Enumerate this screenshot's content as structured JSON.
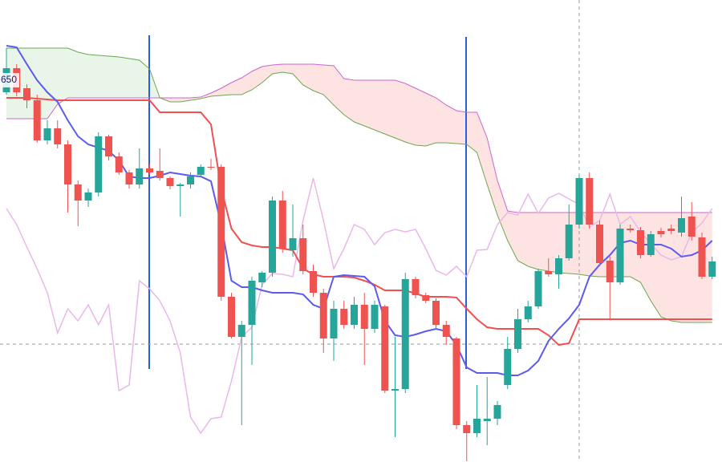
{
  "chart_data": {
    "type": "candlestick",
    "annotations": [
      "650"
    ],
    "ylim": [
      0,
      576
    ],
    "up_color": "#26a69a",
    "down_color": "#ef5350",
    "categories": [
      null,
      null,
      null,
      null,
      null,
      null,
      null,
      null,
      null,
      null,
      null,
      null,
      null,
      null,
      null,
      null,
      null,
      null,
      null,
      null,
      null,
      null,
      null,
      null,
      null,
      null,
      null,
      null,
      null,
      null,
      null,
      null,
      null,
      null,
      null,
      null,
      null,
      null,
      null,
      null,
      null,
      null,
      null,
      null,
      null,
      null,
      null,
      null,
      null,
      null,
      null,
      null,
      null,
      null,
      null,
      null,
      null,
      null,
      null,
      null,
      null,
      null,
      null,
      null,
      null,
      null,
      null,
      null,
      null,
      null
    ],
    "open": [
      461,
      491,
      466,
      451,
      401,
      416,
      396,
      346,
      326,
      336,
      406,
      381,
      361,
      346,
      366,
      363,
      354,
      344,
      346,
      358,
      368,
      368,
      206,
      156,
      171,
      224,
      236,
      326,
      264,
      279,
      238,
      211,
      154,
      191,
      171,
      196,
      166,
      194,
      89,
      91,
      228,
      208,
      201,
      171,
      154,
      46,
      36,
      51,
      54,
      96,
      141,
      178,
      194,
      238,
      234,
      254,
      296,
      354,
      296,
      251,
      224,
      291,
      289,
      258,
      288,
      291,
      286,
      306,
      280,
      231
    ],
    "high": [
      516,
      496,
      471,
      458,
      426,
      426,
      401,
      351,
      341,
      411,
      408,
      386,
      364,
      391,
      371,
      391,
      356,
      348,
      361,
      371,
      378,
      371,
      211,
      176,
      231,
      238,
      331,
      338,
      321,
      296,
      246,
      216,
      201,
      201,
      206,
      211,
      201,
      196,
      156,
      236,
      231,
      211,
      204,
      176,
      156,
      51,
      96,
      106,
      76,
      156,
      191,
      201,
      241,
      254,
      258,
      321,
      358,
      361,
      301,
      256,
      296,
      296,
      293,
      288,
      292,
      296,
      331,
      324,
      286,
      256
    ],
    "low": [
      458,
      456,
      441,
      398,
      396,
      391,
      311,
      294,
      318,
      331,
      376,
      358,
      341,
      341,
      358,
      351,
      340,
      306,
      341,
      356,
      364,
      201,
      154,
      46,
      121,
      218,
      231,
      261,
      256,
      234,
      206,
      136,
      126,
      166,
      166,
      121,
      161,
      86,
      31,
      86,
      204,
      198,
      166,
      146,
      41,
      1,
      31,
      21,
      46,
      91,
      136,
      174,
      191,
      231,
      216,
      251,
      291,
      291,
      244,
      178,
      221,
      286,
      254,
      256,
      280,
      284,
      281,
      276,
      228,
      228
    ],
    "close": [
      491,
      461,
      451,
      401,
      416,
      396,
      346,
      326,
      336,
      406,
      381,
      361,
      346,
      366,
      361,
      354,
      344,
      346,
      356,
      368,
      367,
      206,
      156,
      171,
      226,
      236,
      326,
      266,
      279,
      238,
      211,
      154,
      191,
      171,
      196,
      166,
      196,
      89,
      91,
      228,
      208,
      201,
      171,
      156,
      46,
      36,
      54,
      54,
      71,
      141,
      178,
      194,
      238,
      234,
      254,
      296,
      354,
      296,
      248,
      224,
      291,
      289,
      258,
      284,
      284,
      288,
      304,
      281,
      231,
      250
    ],
    "series": [
      {
        "color": "#cc66cc",
        "width": 1,
        "values": [
          428,
          428,
          428,
          428,
          428,
          446,
          454,
          454,
          454,
          454,
          454,
          454,
          454,
          454,
          454,
          454,
          454,
          454,
          454,
          455,
          460,
          466,
          473,
          479,
          487,
          493,
          495,
          496,
          496,
          496,
          496,
          495,
          494,
          478,
          476,
          476,
          476,
          476,
          476,
          472,
          466,
          460,
          454,
          445,
          438,
          436,
          436,
          404,
          351,
          313,
          311,
          311,
          311,
          311,
          311,
          311,
          311,
          311,
          311,
          311,
          311,
          311,
          311,
          311,
          311,
          311,
          311,
          311,
          311,
          311
        ]
      },
      {
        "color": "#6aa84f",
        "width": 1,
        "values": [
          516,
          516,
          516,
          516,
          516,
          516,
          516,
          511,
          508,
          507,
          506,
          505,
          503,
          501,
          490,
          454,
          449,
          449,
          451,
          453,
          456,
          457,
          458,
          458,
          464,
          473,
          484,
          486,
          484,
          470,
          463,
          458,
          445,
          433,
          424,
          419,
          414,
          409,
          404,
          399,
          395,
          394,
          398,
          398,
          397,
          396,
          386,
          346,
          308,
          276,
          251,
          244,
          240,
          238,
          236,
          235,
          234,
          232,
          231,
          231,
          231,
          231,
          224,
          201,
          181,
          176,
          174,
          174,
          174,
          174
        ]
      },
      {
        "color": "#e9b8e9",
        "width": 1.5,
        "values": [
          316,
          296,
          268,
          241,
          211,
          161,
          191,
          176,
          196,
          171,
          196,
          89,
          96,
          226,
          216,
          201,
          176,
          136,
          56,
          36,
          54,
          56,
          101,
          156,
          168,
          221,
          235,
          234,
          231,
          301,
          354,
          301,
          241,
          266,
          296,
          290,
          271,
          286,
          290,
          287,
          290,
          266,
          239,
          233,
          244,
          231,
          264,
          265,
          296,
          311,
          308,
          334,
          310,
          329,
          335,
          328,
          321,
          293,
          301,
          334,
          296,
          306,
          287,
          272,
          258,
          252,
          256,
          286,
          298,
          316
        ]
      },
      {
        "color": "#f05050",
        "width": 2,
        "values": [
          454,
          454,
          454,
          453,
          452,
          451,
          451,
          451,
          451,
          451,
          451,
          451,
          451,
          451,
          451,
          436,
          436,
          436,
          436,
          436,
          421,
          341,
          291,
          274,
          270,
          268,
          268,
          266,
          264,
          241,
          234,
          231,
          231,
          231,
          230,
          226,
          221,
          214,
          214,
          214,
          210,
          206,
          206,
          206,
          205,
          191,
          178,
          168,
          166,
          166,
          166,
          166,
          166,
          158,
          146,
          148,
          178,
          178,
          178,
          178,
          178,
          178,
          178,
          178,
          178,
          178,
          178,
          178,
          178,
          178
        ]
      },
      {
        "color": "#5b5bf0",
        "width": 2,
        "values": [
          519,
          517,
          496,
          476,
          461,
          449,
          426,
          406,
          396,
          392,
          388,
          376,
          356,
          354,
          354,
          357,
          361,
          359,
          357,
          356,
          350,
          296,
          226,
          218,
          218,
          214,
          211,
          211,
          211,
          209,
          196,
          191,
          231,
          233,
          232,
          231,
          219,
          176,
          158,
          156,
          159,
          163,
          166,
          163,
          146,
          118,
          111,
          111,
          111,
          108,
          108,
          114,
          126,
          151,
          166,
          179,
          196,
          231,
          246,
          258,
          273,
          276,
          271,
          271,
          271,
          266,
          256,
          258,
          264,
          276
        ]
      }
    ]
  }
}
